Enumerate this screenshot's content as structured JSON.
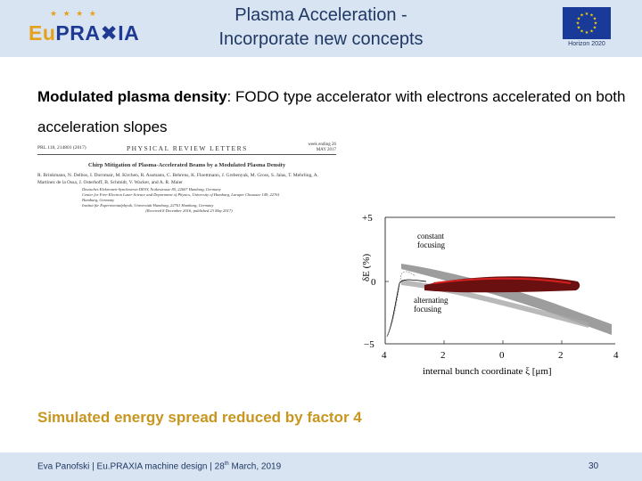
{
  "header": {
    "logo_eu": "Eu",
    "logo_rest": "PRA✖IA",
    "title_line1": "Plasma Acceleration -",
    "title_line2": "Incorporate new concepts",
    "horizon": "Horizon 2020"
  },
  "intro": {
    "bold": "Modulated plasma density",
    "rest": ": FODO type accelerator with electrons accelerated on both acceleration slopes"
  },
  "paper": {
    "ref": "PRL 118, 214801 (2017)",
    "journal": "PHYSICAL REVIEW LETTERS",
    "date": "week ending 26 MAY 2017",
    "title": "Chirp Mitigation of Plasma-Accelerated Beams by a Modulated Plasma Density",
    "authors": "R. Brinkmann, N. Delbos, I. Dornmair, M. Kirchen, R. Assmann, C. Behrens, K. Floettmann, J. Grebenyuk, M. Gross, S. Jalas, T. Mehrling, A. Martinez de la Ossa, J. Osterhoff, B. Schmidt, V. Wacker, and A. R. Maier",
    "affil1": "Deutsches Elektronen-Synchrotron DESY, Notkestrasse 85, 22607 Hamburg, Germany",
    "affil2": "Center for Free-Electron Laser Science and Department of Physics, University of Hamburg, Luruper Chaussee 149, 22761 Hamburg, Germany",
    "affil3": "Institut für Experimentalphysik, Universität Hamburg, 22761 Hamburg, Germany",
    "received": "(Received 8 December 2016; published 23 May 2017)"
  },
  "plot": {
    "ylabel": "δE (%)",
    "xlabel": "internal bunch coordinate ξ [μm]",
    "ytick_top": "+5",
    "ytick_mid": "0",
    "ytick_bot": "−5",
    "xticks": [
      "4",
      "2",
      "0",
      "2",
      "4"
    ],
    "label_constant_1": "constant",
    "label_constant_2": "focusing",
    "label_alt_1": "alternating",
    "label_alt_2": "focusing"
  },
  "result": "Simulated energy spread reduced by factor 4",
  "footer": {
    "text_pre": "Eva Panofski | Eu.PRAXIA machine design | 28",
    "text_sup": "th",
    "text_post": " March, 2019",
    "page": "30"
  },
  "colors": {
    "header_bg": "#d9e4f2",
    "title": "#1f3864",
    "accent": "#c8961e",
    "eu_blue": "#1a3a9a"
  }
}
